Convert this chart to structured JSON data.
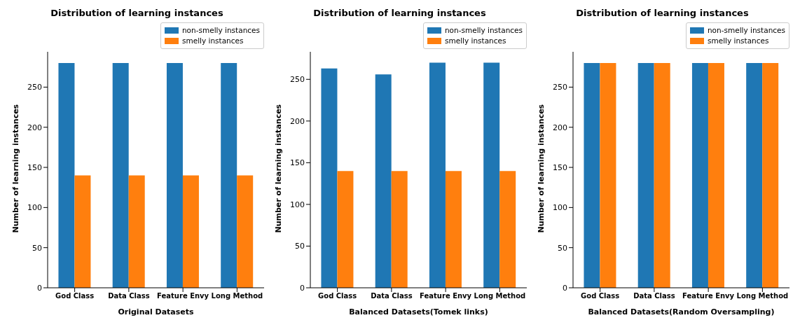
{
  "chart_data": [
    {
      "type": "bar",
      "title": "Distribution of learning instances",
      "xlabel": "Original Datasets",
      "ylabel": "Number of learning instances",
      "categories": [
        "God Class",
        "Data Class",
        "Feature Envy",
        "Long Method"
      ],
      "series": [
        {
          "name": "non-smelly instances",
          "color": "#1f77b4",
          "values": [
            280,
            280,
            280,
            280
          ]
        },
        {
          "name": "smelly instances",
          "color": "#ff7f0e",
          "values": [
            140,
            140,
            140,
            140
          ]
        }
      ],
      "ylim": [
        0,
        294
      ],
      "yticks": [
        0,
        50,
        100,
        150,
        200,
        250
      ],
      "grid": false,
      "legend": "top right"
    },
    {
      "type": "bar",
      "title": "Distribution of learning instances",
      "xlabel": "Balanced Datasets(Tomek links)",
      "ylabel": "Number of learning instances",
      "categories": [
        "God Class",
        "Data Class",
        "Feature Envy",
        "Long Method"
      ],
      "series": [
        {
          "name": "non-smelly instances",
          "color": "#1f77b4",
          "values": [
            263,
            256,
            270,
            270
          ]
        },
        {
          "name": "smelly instances",
          "color": "#ff7f0e",
          "values": [
            140,
            140,
            140,
            140
          ]
        }
      ],
      "ylim": [
        0,
        283
      ],
      "yticks": [
        0,
        50,
        100,
        150,
        200,
        250
      ],
      "grid": false,
      "legend": "top right"
    },
    {
      "type": "bar",
      "title": "Distribution of learning instances",
      "xlabel": "Balanced Datasets(Random Oversampling)",
      "ylabel": "Number of learning instances",
      "categories": [
        "God Class",
        "Data Class",
        "Feature Envy",
        "Long Method"
      ],
      "series": [
        {
          "name": "non-smelly instances",
          "color": "#1f77b4",
          "values": [
            280,
            280,
            280,
            280
          ]
        },
        {
          "name": "smelly instances",
          "color": "#ff7f0e",
          "values": [
            280,
            280,
            280,
            280
          ]
        }
      ],
      "ylim": [
        0,
        294
      ],
      "yticks": [
        0,
        50,
        100,
        150,
        200,
        250
      ],
      "grid": false,
      "legend": "top right"
    }
  ]
}
